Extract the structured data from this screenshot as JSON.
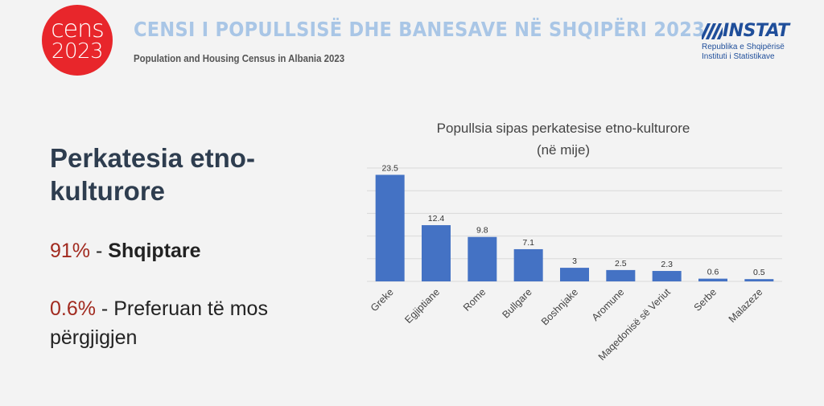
{
  "header": {
    "logo_line1": "cens",
    "logo_line2": "2023",
    "title": "CENSI I POPULLSISË DHE BANESAVE NË SHQIPËRI 2023",
    "subtitle": "Population and Housing Census in Albania 2023",
    "instat_name": "INSTAT",
    "instat_line1": "Republika e Shqipërisë",
    "instat_line2": "Instituti i Statistikave"
  },
  "side": {
    "title": "Perkatesia etno-kulturore",
    "stat1_pct": "91%",
    "stat1_sep": " - ",
    "stat1_label": "Shqiptare",
    "stat2_pct": "0.6%",
    "stat2_text": " - Preferuan të mos përgjigjen"
  },
  "colors": {
    "bar": "#4472c4",
    "accent": "#a12a1f",
    "brand_red": "#e8262b",
    "brand_blue": "#1f4e9a"
  },
  "chart_data": {
    "type": "bar",
    "title": "Popullsia sipas perkatesise etno-kulturore",
    "subtitle": "(në mije)",
    "categories": [
      "Greke",
      "Egjiptiane",
      "Rome",
      "Bullgare",
      "Boshnjake",
      "Aromune",
      "Maqedonisë së Veriut",
      "Serbe",
      "Malazeze"
    ],
    "values": [
      23.5,
      12.4,
      9.8,
      7.1,
      3,
      2.5,
      2.3,
      0.6,
      0.5
    ],
    "value_labels": [
      "23.5",
      "12.4",
      "9.8",
      "7.1",
      "3",
      "2.5",
      "2.3",
      "0.6",
      "0.5"
    ],
    "ylim": [
      0,
      25
    ],
    "grid": true,
    "legend": "none"
  }
}
